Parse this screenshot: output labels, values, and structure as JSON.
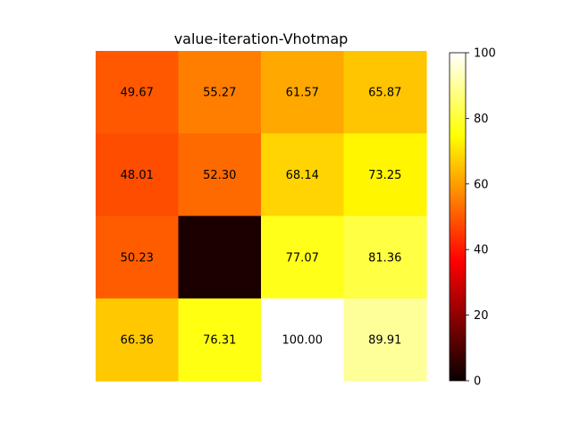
{
  "chart_data": {
    "type": "heatmap",
    "title": "value-iteration-Vhotmap",
    "colormap": "hot",
    "values": [
      [
        49.67,
        55.27,
        61.57,
        65.87
      ],
      [
        48.01,
        52.3,
        68.14,
        73.25
      ],
      [
        50.23,
        0,
        77.07,
        81.36
      ],
      [
        66.36,
        76.31,
        100.0,
        89.91
      ]
    ],
    "cell_labels": [
      [
        "49.67",
        "55.27",
        "61.57",
        "65.87"
      ],
      [
        "48.01",
        "52.30",
        "68.14",
        "73.25"
      ],
      [
        "50.23",
        "",
        "77.07",
        "81.36"
      ],
      [
        "66.36",
        "76.31",
        "100.00",
        "89.91"
      ]
    ],
    "colorbar": {
      "range": [
        0,
        100
      ],
      "ticks": [
        0,
        20,
        40,
        60,
        80,
        100
      ],
      "tick_labels": [
        "0",
        "20",
        "40",
        "60",
        "80",
        "100"
      ]
    }
  }
}
